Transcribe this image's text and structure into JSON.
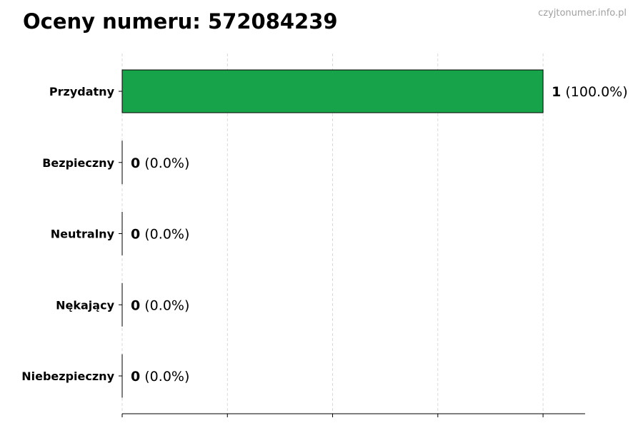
{
  "chart_data": {
    "type": "bar",
    "orientation": "horizontal",
    "title": "Oceny numeru: 572084239",
    "watermark": "czyjtonumer.info.pl",
    "categories": [
      "Przydatny",
      "Bezpieczny",
      "Neutralny",
      "Nękający",
      "Niebezpieczny"
    ],
    "values": [
      1,
      0,
      0,
      0,
      0
    ],
    "percent_labels": [
      "(100.0%)",
      "(0.0%)",
      "(0.0%)",
      "(0.0%)",
      "(0.0%)"
    ],
    "count_labels": [
      "1",
      "0",
      "0",
      "0",
      "0"
    ],
    "colors": [
      "#17a34a",
      "#17a34a",
      "#17a34a",
      "#17a34a",
      "#17a34a"
    ],
    "xlim": [
      0,
      1.1
    ],
    "xticks": [
      0,
      0.25,
      0.5,
      0.75,
      1
    ],
    "xtick_labels_visible": false,
    "grid": "x, dashed",
    "xlabel": "",
    "ylabel": ""
  }
}
